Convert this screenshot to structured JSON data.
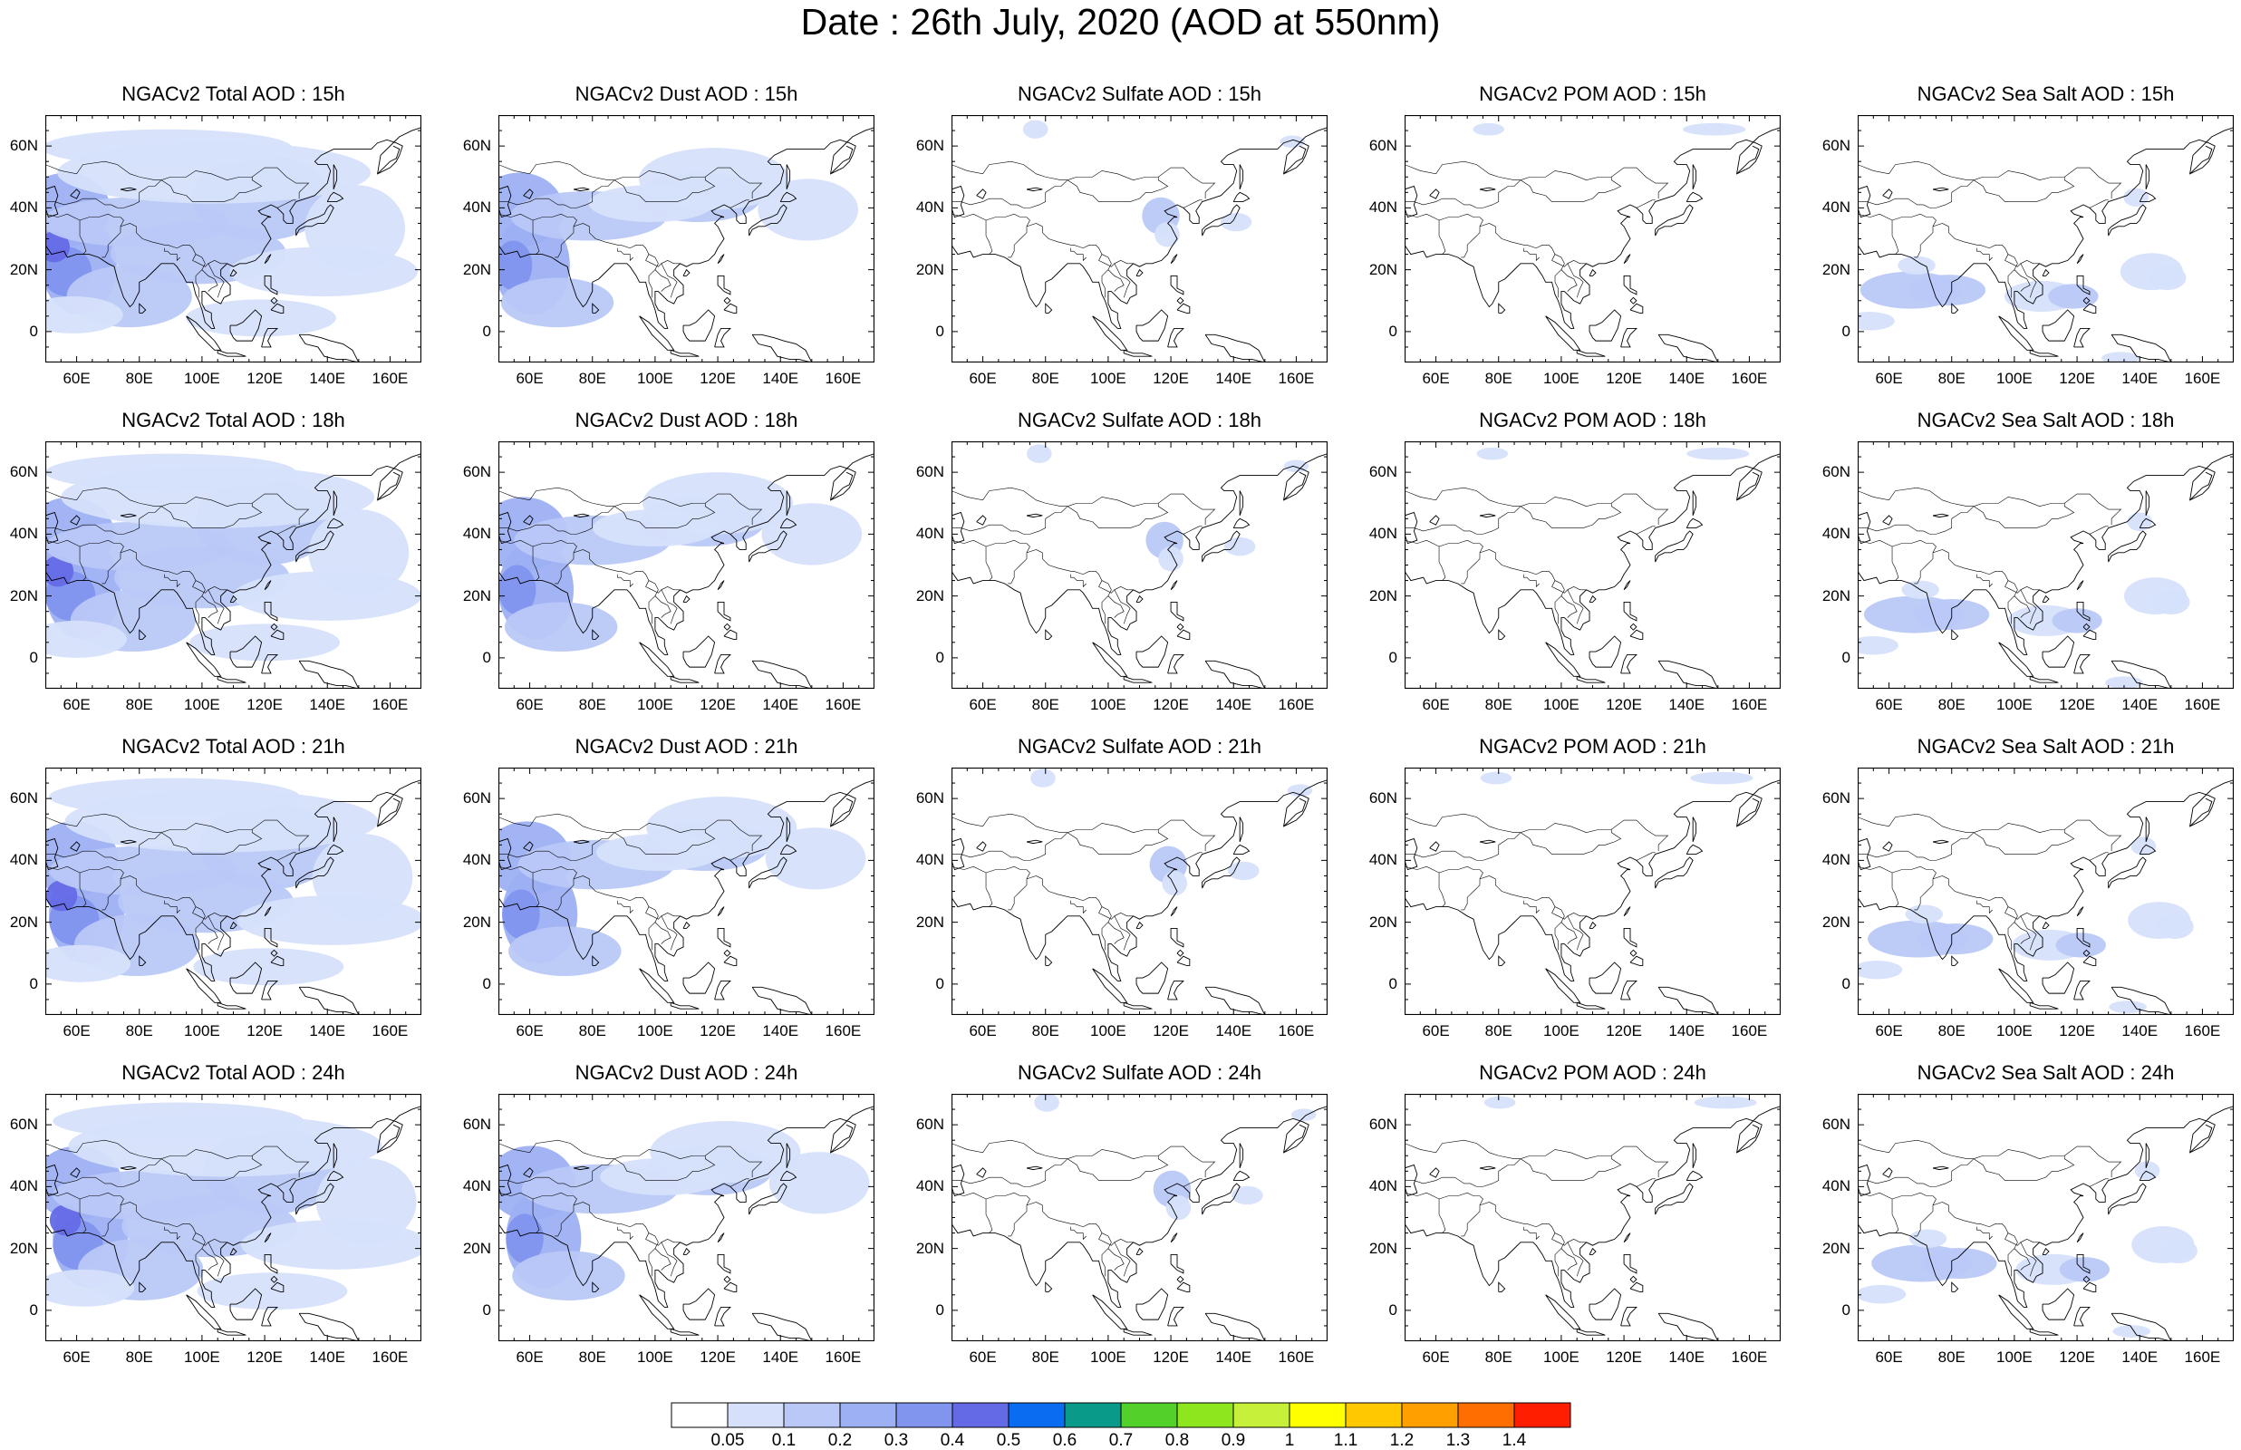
{
  "title": "Date : 26th July, 2020 (AOD at 550nm)",
  "chart_data": {
    "type": "map",
    "grid": "4 rows x 5 columns",
    "map_extent": {
      "lon_min": 50,
      "lon_max": 170,
      "lat_min": -10,
      "lat_max": 70
    },
    "lon_ticks": [
      "60E",
      "80E",
      "100E",
      "120E",
      "140E",
      "160E"
    ],
    "lat_ticks": [
      "60N",
      "40N",
      "20N",
      "0"
    ],
    "rows": [
      "15h",
      "18h",
      "21h",
      "24h"
    ],
    "columns": [
      "Total",
      "Dust",
      "Sulfate",
      "POM",
      "Sea Salt"
    ],
    "panels": [
      [
        "NGACv2 Total AOD : 15h",
        "NGACv2 Dust AOD : 15h",
        "NGACv2 Sulfate AOD : 15h",
        "NGACv2 POM AOD : 15h",
        "NGACv2 Sea Salt AOD : 15h"
      ],
      [
        "NGACv2 Total AOD : 18h",
        "NGACv2 Dust AOD : 18h",
        "NGACv2 Sulfate AOD : 18h",
        "NGACv2 POM AOD : 18h",
        "NGACv2 Sea Salt AOD : 18h"
      ],
      [
        "NGACv2 Total AOD : 21h",
        "NGACv2 Dust AOD : 21h",
        "NGACv2 Sulfate AOD : 21h",
        "NGACv2 POM AOD : 21h",
        "NGACv2 Sea Salt AOD : 21h"
      ],
      [
        "NGACv2 Total AOD : 24h",
        "NGACv2 Dust AOD : 24h",
        "NGACv2 Sulfate AOD : 24h",
        "NGACv2 POM AOD : 24h",
        "NGACv2 Sea Salt  AOD : 24h"
      ]
    ],
    "colorbar": {
      "levels": [
        "0.05",
        "0.1",
        "0.2",
        "0.3",
        "0.4",
        "0.5",
        "0.6",
        "0.7",
        "0.8",
        "0.9",
        "1",
        "1.1",
        "1.2",
        "1.3",
        "1.4"
      ],
      "colors": [
        "#ffffff",
        "#d6e0fb",
        "#b9c8f7",
        "#9db0f3",
        "#8195ef",
        "#646ae6",
        "#0a6cf0",
        "#0a9a8a",
        "#52d12a",
        "#8ee61e",
        "#c6f03a",
        "#ffff00",
        "#ffc800",
        "#ffa000",
        "#ff6e00",
        "#ff1e00"
      ]
    }
  }
}
